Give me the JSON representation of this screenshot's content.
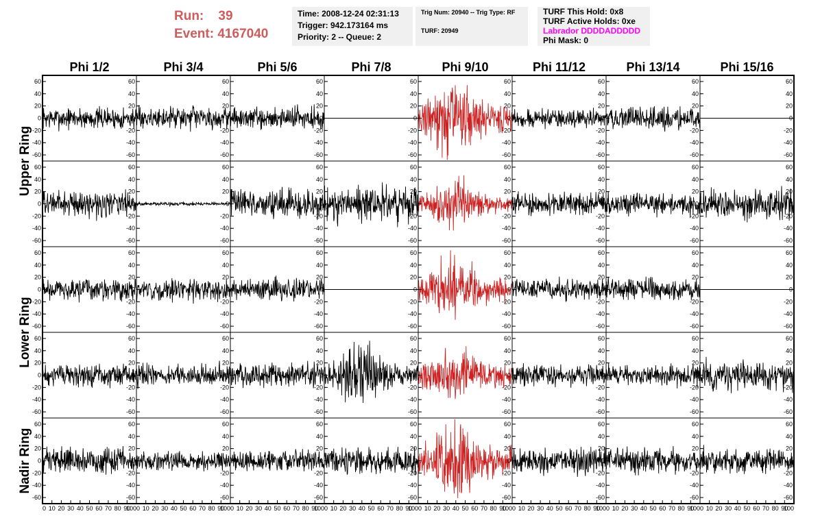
{
  "header": {
    "run_label": "Run:",
    "run_value": "39",
    "event_label": "Event:",
    "event_value": "4167040",
    "time": "Time: 2008-12-24 02:31:13",
    "trigger": "Trigger: 942.173164 ms",
    "priority": "Priority: 2 -- Queue: 2",
    "trig_num": "Trig Num: 20940 -- Trig Type: RF",
    "turf": "TURF: 20949",
    "turf_hold": "TURF This Hold: 0x8",
    "turf_active": "TURF Active Holds: 0xe",
    "labrador": "Labrador DDDDADDDDD",
    "phi_mask": "Phi Mask: 0"
  },
  "colors": {
    "header_text": "#cd5c5c",
    "labrador_text": "#ff00ff",
    "triggered_trace": "#cc2222",
    "normal_trace": "#000000",
    "info_background": "#f0f0f0"
  },
  "chart_data": {
    "type": "line",
    "columns": [
      "Phi 1/2",
      "Phi 3/4",
      "Phi 5/6",
      "Phi 7/8",
      "Phi 9/10",
      "Phi 11/12",
      "Phi 13/14",
      "Phi 15/16"
    ],
    "rows": [
      "Upper Ring",
      "Upper Ring",
      "Lower Ring",
      "Lower Ring",
      "Nadir Ring"
    ],
    "row_labels": [
      {
        "label": "Upper Ring",
        "span_rows": [
          0,
          1
        ]
      },
      {
        "label": "Lower Ring",
        "span_rows": [
          2,
          3
        ]
      },
      {
        "label": "Nadir Ring",
        "span_rows": [
          4,
          4
        ]
      }
    ],
    "xlim": [
      0,
      100
    ],
    "ylim": [
      -70,
      70
    ],
    "x_ticks": [
      0,
      10,
      20,
      30,
      40,
      50,
      60,
      70,
      80,
      90,
      100
    ],
    "x_tick_labels_shown": [
      "0",
      "10",
      "20",
      "30",
      "40",
      "50",
      "60",
      "70",
      "80",
      "90",
      "100"
    ],
    "y_ticks": [
      -60,
      -40,
      -20,
      0,
      20,
      40,
      60
    ],
    "y_tick_labels": [
      "-60",
      "-40",
      "-20",
      "0",
      "20",
      "40",
      "60"
    ],
    "triggered_column": 4,
    "series_amplitudes": [
      [
        12,
        12,
        12,
        0,
        30,
        10,
        12,
        0
      ],
      [
        14,
        2,
        16,
        20,
        18,
        12,
        12,
        18
      ],
      [
        12,
        12,
        12,
        0,
        24,
        12,
        12,
        0
      ],
      [
        12,
        12,
        14,
        24,
        22,
        12,
        12,
        16
      ],
      [
        14,
        10,
        12,
        14,
        30,
        14,
        14,
        14
      ]
    ],
    "series_bursts": [
      [
        0,
        0,
        0,
        0,
        1,
        0,
        0,
        0
      ],
      [
        0,
        0,
        0,
        0,
        1,
        0,
        0,
        0
      ],
      [
        0,
        0,
        0,
        0,
        1,
        0,
        0,
        0
      ],
      [
        0,
        0,
        0,
        1,
        1,
        0,
        0,
        0
      ],
      [
        0,
        0,
        0,
        0,
        1,
        0,
        0,
        0
      ]
    ],
    "samples_per_trace": 260
  }
}
